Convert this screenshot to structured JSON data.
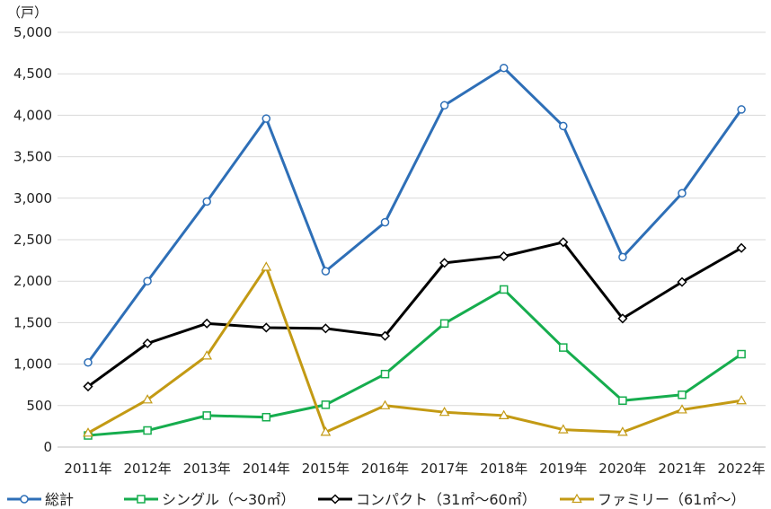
{
  "chart_data": {
    "type": "line",
    "title": "",
    "xlabel": "",
    "ylabel": "",
    "unit_label": "（戸）",
    "categories": [
      "2011年",
      "2012年",
      "2013年",
      "2014年",
      "2015年",
      "2016年",
      "2017年",
      "2018年",
      "2019年",
      "2020年",
      "2021年",
      "2022年"
    ],
    "ylim": [
      0,
      5000
    ],
    "yticks": [
      0,
      500,
      1000,
      1500,
      2000,
      2500,
      3000,
      3500,
      4000,
      4500,
      5000
    ],
    "ytick_labels": [
      "0",
      "500",
      "1,000",
      "1,500",
      "2,000",
      "2,500",
      "3,000",
      "3,500",
      "4,000",
      "4,500",
      "5,000"
    ],
    "grid": "horizontal",
    "legend_position": "bottom",
    "series": [
      {
        "name": "総計",
        "color": "#2e6fb7",
        "marker": "circle",
        "values": [
          1020,
          2000,
          2960,
          3960,
          2120,
          2710,
          4120,
          4570,
          3870,
          2290,
          3060,
          4070
        ]
      },
      {
        "name": "シングル（～30㎡）",
        "color": "#16ad4e",
        "marker": "square",
        "values": [
          140,
          200,
          380,
          360,
          510,
          880,
          1490,
          1900,
          1200,
          560,
          630,
          1120
        ]
      },
      {
        "name": "コンパクト（31㎡～60㎡）",
        "color": "#000000",
        "marker": "diamond",
        "values": [
          730,
          1250,
          1490,
          1440,
          1430,
          1340,
          2220,
          2300,
          2470,
          1550,
          1990,
          2400
        ]
      },
      {
        "name": "ファミリー（61㎡～）",
        "color": "#c39a14",
        "marker": "triangle",
        "values": [
          170,
          570,
          1100,
          2170,
          180,
          500,
          420,
          380,
          210,
          180,
          450,
          560
        ]
      }
    ]
  }
}
